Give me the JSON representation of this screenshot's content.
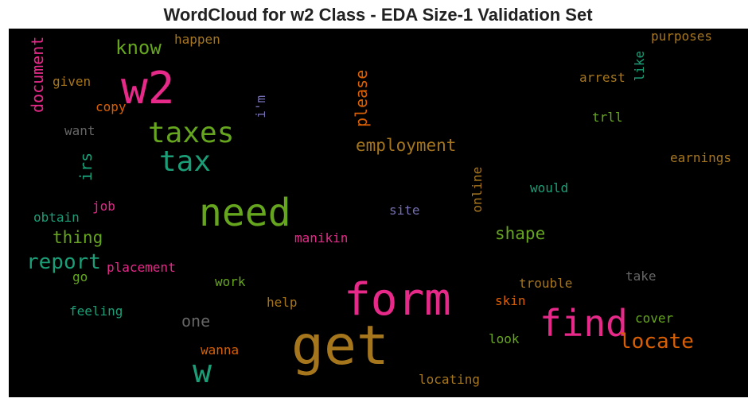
{
  "chart_data": {
    "type": "wordcloud",
    "title": "WordCloud for w2 Class - EDA Size-1 Validation Set",
    "background": "#000000",
    "words": [
      {
        "text": "get",
        "color": "#a6761d"
      },
      {
        "text": "form",
        "color": "#e7298a"
      },
      {
        "text": "w2",
        "color": "#e7298a"
      },
      {
        "text": "need",
        "color": "#66a61e"
      },
      {
        "text": "find",
        "color": "#e7298a"
      },
      {
        "text": "w",
        "color": "#1b9e77"
      },
      {
        "text": "taxes",
        "color": "#66a61e"
      },
      {
        "text": "tax",
        "color": "#1b9e77"
      },
      {
        "text": "locate",
        "color": "#d95f02"
      },
      {
        "text": "report",
        "color": "#1b9e77"
      },
      {
        "text": "know",
        "color": "#66a61e"
      },
      {
        "text": "employment",
        "color": "#a6761d"
      },
      {
        "text": "shape",
        "color": "#66a61e"
      },
      {
        "text": "thing",
        "color": "#66a61e"
      },
      {
        "text": "document",
        "color": "#e7298a"
      },
      {
        "text": "please",
        "color": "#d95f02"
      },
      {
        "text": "irs",
        "color": "#1b9e77"
      },
      {
        "text": "one",
        "color": "#666666"
      },
      {
        "text": "happen",
        "color": "#a6761d"
      },
      {
        "text": "purposes",
        "color": "#a6761d"
      },
      {
        "text": "given",
        "color": "#a6761d"
      },
      {
        "text": "arrest",
        "color": "#a6761d"
      },
      {
        "text": "like",
        "color": "#1b9e77"
      },
      {
        "text": "copy",
        "color": "#d95f02"
      },
      {
        "text": "i'm",
        "color": "#7570b3"
      },
      {
        "text": "want",
        "color": "#666666"
      },
      {
        "text": "trll",
        "color": "#66a61e"
      },
      {
        "text": "earnings",
        "color": "#a6761d"
      },
      {
        "text": "online",
        "color": "#a6761d"
      },
      {
        "text": "would",
        "color": "#1b9e77"
      },
      {
        "text": "job",
        "color": "#e7298a"
      },
      {
        "text": "obtain",
        "color": "#1b9e77"
      },
      {
        "text": "site",
        "color": "#7570b3"
      },
      {
        "text": "manikin",
        "color": "#e7298a"
      },
      {
        "text": "placement",
        "color": "#e7298a"
      },
      {
        "text": "go",
        "color": "#66a61e"
      },
      {
        "text": "work",
        "color": "#66a61e"
      },
      {
        "text": "trouble",
        "color": "#a6761d"
      },
      {
        "text": "take",
        "color": "#666666"
      },
      {
        "text": "help",
        "color": "#a6761d"
      },
      {
        "text": "skin",
        "color": "#d95f02"
      },
      {
        "text": "feeling",
        "color": "#1b9e77"
      },
      {
        "text": "cover",
        "color": "#66a61e"
      },
      {
        "text": "look",
        "color": "#66a61e"
      },
      {
        "text": "wanna",
        "color": "#d95f02"
      },
      {
        "text": "locating",
        "color": "#a6761d"
      }
    ]
  }
}
